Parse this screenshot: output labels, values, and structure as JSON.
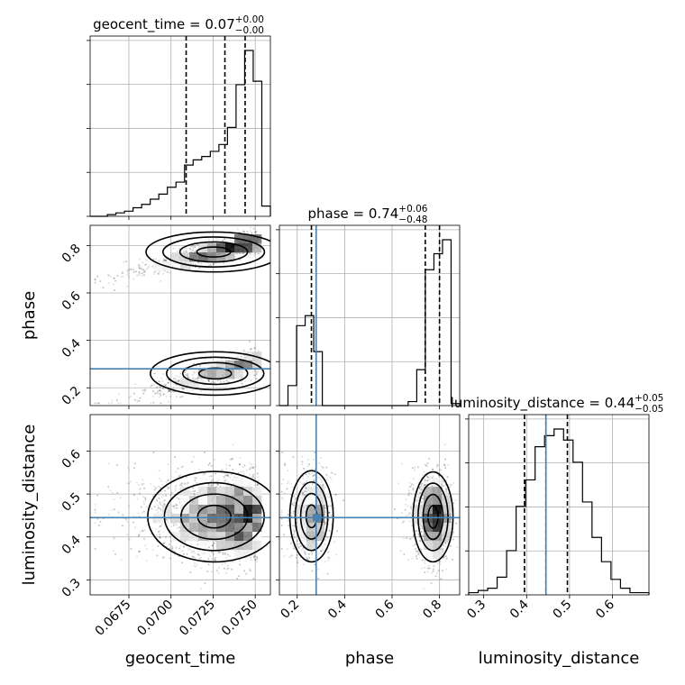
{
  "chart_data": {
    "type": "corner",
    "parameters": [
      "geocent_time",
      "phase",
      "luminosity_distance"
    ],
    "titles": [
      {
        "param": "geocent_time",
        "prefix": "geocent_time = ",
        "value": "0.07",
        "plus": "+0.00",
        "minus": "−0.00"
      },
      {
        "param": "phase",
        "prefix": "phase = ",
        "value": "0.74",
        "plus": "+0.06",
        "minus": "−0.48"
      },
      {
        "param": "luminosity_distance",
        "prefix": "luminosity_distance = ",
        "value": "0.44",
        "plus": "+0.05",
        "minus": "−0.05"
      }
    ],
    "axis_labels": {
      "x": [
        "geocent_time",
        "phase",
        "luminosity_distance"
      ],
      "y": [
        "phase",
        "luminosity_distance"
      ]
    },
    "ranges": {
      "geocent_time": [
        0.0652,
        0.0759
      ],
      "phase": [
        0.125,
        0.885
      ],
      "luminosity_distance": [
        0.265,
        0.685
      ]
    },
    "ticks": {
      "geocent_time": {
        "values": [
          0.0675,
          0.07,
          0.0725,
          0.075
        ],
        "labels": [
          "0.0675",
          "0.0700",
          "0.0725",
          "0.0750"
        ]
      },
      "phase": {
        "values": [
          0.2,
          0.4,
          0.6,
          0.8
        ],
        "labels": [
          "0.2",
          "0.4",
          "0.6",
          "0.8"
        ]
      },
      "luminosity_distance": {
        "values": [
          0.3,
          0.4,
          0.5,
          0.6
        ],
        "labels": [
          "0.3",
          "0.4",
          "0.5",
          "0.6"
        ]
      }
    },
    "injection": {
      "phase": 0.28,
      "luminosity_distance": 0.445
    },
    "quantiles": {
      "geocent_time": [
        0.0709,
        0.0732,
        0.0744
      ],
      "phase": [
        0.26,
        0.74,
        0.8
      ],
      "luminosity_distance": [
        0.395,
        0.445,
        0.495
      ]
    },
    "histograms": {
      "geocent_time": [
        0,
        0,
        1,
        2,
        3,
        5,
        7,
        10,
        13,
        17,
        20,
        30,
        33,
        35,
        38,
        42,
        52,
        77,
        97,
        79,
        6
      ],
      "phase": [
        0,
        10,
        40,
        45,
        27,
        0,
        0,
        0,
        0,
        0,
        0,
        0,
        0,
        0,
        0,
        2,
        18,
        68,
        76,
        83,
        1
      ],
      "luminosity_distance": [
        1,
        2,
        3,
        8,
        20,
        40,
        52,
        67,
        72,
        75,
        70,
        60,
        42,
        26,
        15,
        7,
        3,
        1,
        1
      ]
    },
    "grid": true
  }
}
